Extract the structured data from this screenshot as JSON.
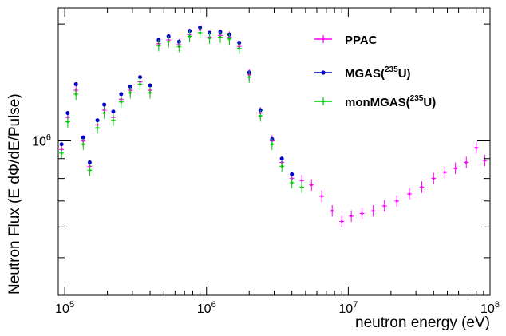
{
  "chart_data": {
    "type": "scatter",
    "title": "",
    "xlabel": "neutron energy (eV)",
    "ylabel": "Neutron Flux (E dΦ/dE/Pulse)",
    "xscale": "log",
    "yscale": "log",
    "xlim": [
      90000,
      100000000
    ],
    "ylim": [
      400000,
      2200000
    ],
    "x_ticks": [
      {
        "value": 100000,
        "base": "10",
        "exp": "5"
      },
      {
        "value": 1000000,
        "base": "10",
        "exp": "6"
      },
      {
        "value": 10000000,
        "base": "10",
        "exp": "7"
      },
      {
        "value": 100000000,
        "base": "10",
        "exp": "8"
      }
    ],
    "y_ticks": [
      {
        "value": 1000000,
        "base": "10",
        "exp": "6"
      }
    ],
    "legend_position": "top-right",
    "grid": false,
    "series": [
      {
        "name": "PPAC",
        "color": "#ff00ff",
        "marker": "small-dot-with-errorbars",
        "x": [
          95000,
          105000,
          120000,
          135000,
          150000,
          170000,
          190000,
          220000,
          250000,
          290000,
          340000,
          400000,
          460000,
          540000,
          640000,
          760000,
          900000,
          1050000,
          1250000,
          1450000,
          1700000,
          2000000,
          2400000,
          2900000,
          3400000,
          4000000,
          4700000,
          5500000,
          6500000,
          7700000,
          9000000,
          10500000,
          12500000,
          15000000,
          18000000,
          22000000,
          27000000,
          33000000,
          40000000,
          48000000,
          57000000,
          68000000,
          80000000,
          92000000
        ],
        "y": [
          950000,
          1150000,
          1350000,
          1000000,
          860000,
          1100000,
          1200000,
          1150000,
          1280000,
          1350000,
          1420000,
          1350000,
          1780000,
          1820000,
          1770000,
          1880000,
          1930000,
          1850000,
          1870000,
          1850000,
          1750000,
          1480000,
          1180000,
          1000000,
          880000,
          800000,
          790000,
          770000,
          720000,
          660000,
          620000,
          640000,
          650000,
          660000,
          680000,
          700000,
          730000,
          760000,
          800000,
          830000,
          850000,
          880000,
          960000,
          890000
        ]
      },
      {
        "name": "MGAS(^{235}U)",
        "legend_parts": {
          "prefix": "MGAS(",
          "sup": "235",
          "suffix": "U)"
        },
        "color": "#0000cc",
        "marker": "circle",
        "x": [
          95000,
          105000,
          120000,
          135000,
          150000,
          170000,
          190000,
          220000,
          250000,
          290000,
          340000,
          400000,
          460000,
          540000,
          640000,
          760000,
          900000,
          1050000,
          1250000,
          1450000,
          1700000,
          2000000,
          2400000,
          2900000,
          3400000,
          4000000
        ],
        "y": [
          980000,
          1180000,
          1400000,
          1020000,
          880000,
          1130000,
          1240000,
          1190000,
          1320000,
          1380000,
          1460000,
          1390000,
          1820000,
          1860000,
          1800000,
          1920000,
          1960000,
          1900000,
          1910000,
          1880000,
          1790000,
          1500000,
          1200000,
          1010000,
          900000,
          820000
        ]
      },
      {
        "name": "monMGAS(^{235}U)",
        "legend_parts": {
          "prefix": "monMGAS(",
          "sup": "235",
          "suffix": "U)"
        },
        "color": "#00cc00",
        "marker": "small-dot-with-errorbars",
        "x": [
          95000,
          105000,
          120000,
          135000,
          150000,
          170000,
          190000,
          220000,
          250000,
          290000,
          340000,
          400000,
          460000,
          540000,
          640000,
          760000,
          900000,
          1050000,
          1250000,
          1450000,
          1700000,
          2000000,
          2400000,
          2900000,
          3400000,
          4000000,
          4700000
        ],
        "y": [
          930000,
          1120000,
          1320000,
          980000,
          840000,
          1080000,
          1180000,
          1130000,
          1260000,
          1330000,
          1400000,
          1330000,
          1760000,
          1800000,
          1750000,
          1860000,
          1900000,
          1840000,
          1850000,
          1830000,
          1730000,
          1460000,
          1160000,
          980000,
          860000,
          780000,
          760000
        ]
      }
    ]
  }
}
